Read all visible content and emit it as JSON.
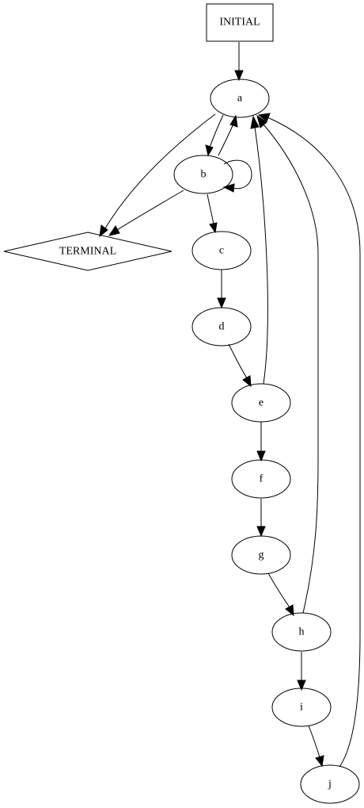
{
  "nodes": [
    {
      "id": "INITIAL",
      "label": "INITIAL",
      "shape": "box"
    },
    {
      "id": "a",
      "label": "a",
      "shape": "ellipse"
    },
    {
      "id": "b",
      "label": "b",
      "shape": "ellipse"
    },
    {
      "id": "TERMINAL",
      "label": "TERMINAL",
      "shape": "diamond"
    },
    {
      "id": "c",
      "label": "c",
      "shape": "ellipse"
    },
    {
      "id": "d",
      "label": "d",
      "shape": "ellipse"
    },
    {
      "id": "e",
      "label": "e",
      "shape": "ellipse"
    },
    {
      "id": "f",
      "label": "f",
      "shape": "ellipse"
    },
    {
      "id": "g",
      "label": "g",
      "shape": "ellipse"
    },
    {
      "id": "h",
      "label": "h",
      "shape": "ellipse"
    },
    {
      "id": "i",
      "label": "i",
      "shape": "ellipse"
    },
    {
      "id": "j",
      "label": "j",
      "shape": "ellipse"
    }
  ],
  "edges": [
    {
      "from": "INITIAL",
      "to": "a"
    },
    {
      "from": "a",
      "to": "b"
    },
    {
      "from": "a",
      "to": "TERMINAL"
    },
    {
      "from": "b",
      "to": "a"
    },
    {
      "from": "b",
      "to": "b"
    },
    {
      "from": "b",
      "to": "TERMINAL"
    },
    {
      "from": "b",
      "to": "c"
    },
    {
      "from": "c",
      "to": "d"
    },
    {
      "from": "d",
      "to": "e"
    },
    {
      "from": "e",
      "to": "a"
    },
    {
      "from": "e",
      "to": "f"
    },
    {
      "from": "f",
      "to": "g"
    },
    {
      "from": "g",
      "to": "h"
    },
    {
      "from": "h",
      "to": "a"
    },
    {
      "from": "h",
      "to": "i"
    },
    {
      "from": "i",
      "to": "j"
    },
    {
      "from": "j",
      "to": "a"
    }
  ]
}
